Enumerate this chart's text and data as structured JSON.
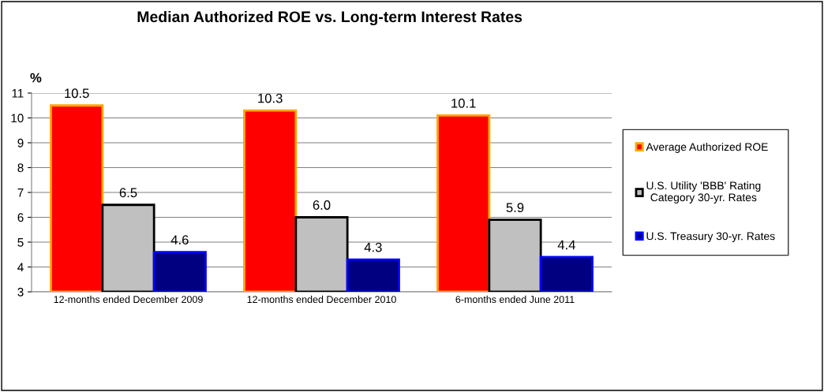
{
  "chart_data": {
    "type": "bar",
    "title": "Median Authorized ROE vs. Long-term Interest Rates",
    "ylabel": "%",
    "categories": [
      "12-months ended December 2009",
      "12-months ended December 2010",
      "6-months ended June 2011"
    ],
    "series": [
      {
        "name": "Average Authorized ROE",
        "color": "#ff0000",
        "values": [
          10.5,
          10.3,
          10.1
        ],
        "value_labels": [
          "10.5",
          "10.3",
          "10.1"
        ]
      },
      {
        "name": "U.S. Utility 'BBB' Rating Category 30-yr. Rates",
        "color": "#c0c0c0",
        "values": [
          6.5,
          6.0,
          5.9
        ],
        "value_labels": [
          "6.5",
          "6.0",
          "5.9"
        ]
      },
      {
        "name": "U.S. Treasury 30-yr. Rates",
        "color": "#000080",
        "values": [
          4.6,
          4.3,
          4.4
        ],
        "value_labels": [
          "4.6",
          "4.3",
          "4.4"
        ]
      }
    ],
    "ylim": [
      3,
      11
    ],
    "yticks": [
      3,
      4,
      5,
      6,
      7,
      8,
      9,
      10,
      11
    ],
    "grid": "y",
    "legend": "right"
  }
}
